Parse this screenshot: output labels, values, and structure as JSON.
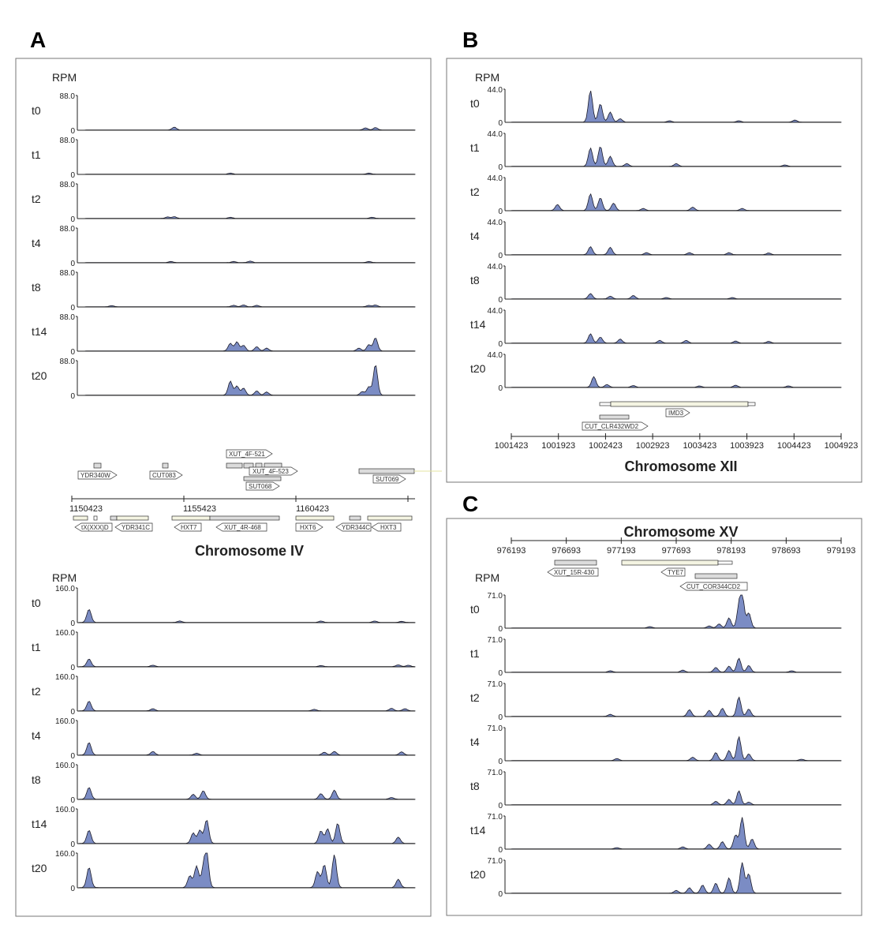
{
  "panels": {
    "A": {
      "letter": "A",
      "rpm_label": "RPM",
      "top": {
        "ymax_label": "88.0",
        "zero_label": "0",
        "tracks": [
          {
            "label": "t0",
            "peaks": [
              [
                0.27,
                0.08
              ],
              [
                0.85,
                0.06
              ],
              [
                0.88,
                0.07
              ]
            ]
          },
          {
            "label": "t1",
            "peaks": [
              [
                0.44,
                0.03
              ],
              [
                0.86,
                0.03
              ]
            ]
          },
          {
            "label": "t2",
            "peaks": [
              [
                0.25,
                0.04
              ],
              [
                0.27,
                0.05
              ],
              [
                0.44,
                0.03
              ],
              [
                0.87,
                0.03
              ]
            ]
          },
          {
            "label": "t4",
            "peaks": [
              [
                0.26,
                0.03
              ],
              [
                0.45,
                0.03
              ],
              [
                0.5,
                0.04
              ],
              [
                0.86,
                0.03
              ]
            ]
          },
          {
            "label": "t8",
            "peaks": [
              [
                0.08,
                0.03
              ],
              [
                0.45,
                0.04
              ],
              [
                0.48,
                0.05
              ],
              [
                0.52,
                0.04
              ],
              [
                0.86,
                0.04
              ],
              [
                0.88,
                0.05
              ]
            ]
          },
          {
            "label": "t14",
            "peaks": [
              [
                0.44,
                0.22
              ],
              [
                0.46,
                0.26
              ],
              [
                0.48,
                0.16
              ],
              [
                0.52,
                0.12
              ],
              [
                0.55,
                0.08
              ],
              [
                0.83,
                0.08
              ],
              [
                0.86,
                0.18
              ],
              [
                0.88,
                0.38
              ]
            ]
          },
          {
            "label": "t20",
            "peaks": [
              [
                0.44,
                0.4
              ],
              [
                0.46,
                0.26
              ],
              [
                0.48,
                0.2
              ],
              [
                0.52,
                0.12
              ],
              [
                0.55,
                0.09
              ],
              [
                0.84,
                0.1
              ],
              [
                0.86,
                0.24
              ],
              [
                0.88,
                0.88
              ]
            ]
          }
        ]
      },
      "annotation": {
        "genes_top": [
          "YDR340W",
          "CUT083",
          "XUT_4F-521",
          "XUT_4F-523",
          "SUT068",
          "SUT069"
        ],
        "genes_bottom": [
          "tX(XXX)D",
          "YDR341C",
          "HXT7",
          "XUT_4R-468",
          "HXT6",
          "YDR344C",
          "HXT3"
        ],
        "ticks": [
          "1150423",
          "1155423",
          "1160423"
        ],
        "title": "Chromosome IV"
      },
      "bottom": {
        "rpm_label": "RPM",
        "ymax_label": "160.0",
        "zero_label": "0",
        "tracks": [
          {
            "label": "t0",
            "peaks": [
              [
                0.03,
                0.38
              ],
              [
                0.3,
                0.04
              ],
              [
                0.72,
                0.04
              ],
              [
                0.88,
                0.04
              ],
              [
                0.96,
                0.03
              ]
            ]
          },
          {
            "label": "t1",
            "peaks": [
              [
                0.03,
                0.22
              ],
              [
                0.22,
                0.04
              ],
              [
                0.72,
                0.03
              ],
              [
                0.95,
                0.05
              ],
              [
                0.98,
                0.04
              ]
            ]
          },
          {
            "label": "t2",
            "peaks": [
              [
                0.03,
                0.28
              ],
              [
                0.22,
                0.06
              ],
              [
                0.7,
                0.04
              ],
              [
                0.93,
                0.07
              ],
              [
                0.97,
                0.06
              ]
            ]
          },
          {
            "label": "t4",
            "peaks": [
              [
                0.03,
                0.36
              ],
              [
                0.22,
                0.1
              ],
              [
                0.35,
                0.05
              ],
              [
                0.73,
                0.08
              ],
              [
                0.76,
                0.1
              ],
              [
                0.96,
                0.09
              ]
            ]
          },
          {
            "label": "t8",
            "peaks": [
              [
                0.03,
                0.34
              ],
              [
                0.34,
                0.14
              ],
              [
                0.37,
                0.24
              ],
              [
                0.72,
                0.16
              ],
              [
                0.76,
                0.26
              ],
              [
                0.93,
                0.05
              ]
            ]
          },
          {
            "label": "t14",
            "peaks": [
              [
                0.03,
                0.38
              ],
              [
                0.34,
                0.3
              ],
              [
                0.36,
                0.38
              ],
              [
                0.38,
                0.68
              ],
              [
                0.72,
                0.36
              ],
              [
                0.74,
                0.42
              ],
              [
                0.77,
                0.58
              ],
              [
                0.95,
                0.18
              ]
            ]
          },
          {
            "label": "t20",
            "peaks": [
              [
                0.03,
                0.58
              ],
              [
                0.33,
                0.34
              ],
              [
                0.35,
                0.62
              ],
              [
                0.37,
                0.44
              ],
              [
                0.38,
                0.95
              ],
              [
                0.71,
                0.46
              ],
              [
                0.73,
                0.66
              ],
              [
                0.76,
                0.95
              ],
              [
                0.95,
                0.24
              ]
            ]
          }
        ]
      }
    },
    "B": {
      "letter": "B",
      "rpm_label": "RPM",
      "ymax_label": "44.0",
      "zero_label": "0",
      "tracks": [
        {
          "label": "t0",
          "peaks": [
            [
              0.24,
              0.95
            ],
            [
              0.27,
              0.55
            ],
            [
              0.3,
              0.3
            ],
            [
              0.33,
              0.1
            ],
            [
              0.48,
              0.04
            ],
            [
              0.69,
              0.04
            ],
            [
              0.86,
              0.06
            ]
          ]
        },
        {
          "label": "t1",
          "peaks": [
            [
              0.24,
              0.55
            ],
            [
              0.27,
              0.6
            ],
            [
              0.3,
              0.3
            ],
            [
              0.35,
              0.08
            ],
            [
              0.5,
              0.08
            ],
            [
              0.83,
              0.04
            ]
          ]
        },
        {
          "label": "t2",
          "peaks": [
            [
              0.14,
              0.18
            ],
            [
              0.24,
              0.5
            ],
            [
              0.27,
              0.38
            ],
            [
              0.31,
              0.22
            ],
            [
              0.4,
              0.06
            ],
            [
              0.55,
              0.1
            ],
            [
              0.7,
              0.06
            ]
          ]
        },
        {
          "label": "t4",
          "peaks": [
            [
              0.24,
              0.24
            ],
            [
              0.3,
              0.22
            ],
            [
              0.41,
              0.06
            ],
            [
              0.54,
              0.06
            ],
            [
              0.66,
              0.06
            ],
            [
              0.78,
              0.05
            ]
          ]
        },
        {
          "label": "t8",
          "peaks": [
            [
              0.24,
              0.16
            ],
            [
              0.3,
              0.08
            ],
            [
              0.37,
              0.1
            ],
            [
              0.47,
              0.04
            ],
            [
              0.67,
              0.04
            ]
          ]
        },
        {
          "label": "t14",
          "peaks": [
            [
              0.24,
              0.28
            ],
            [
              0.27,
              0.18
            ],
            [
              0.33,
              0.12
            ],
            [
              0.45,
              0.08
            ],
            [
              0.53,
              0.08
            ],
            [
              0.68,
              0.06
            ],
            [
              0.78,
              0.05
            ]
          ]
        },
        {
          "label": "t20",
          "peaks": [
            [
              0.25,
              0.32
            ],
            [
              0.29,
              0.08
            ],
            [
              0.37,
              0.05
            ],
            [
              0.57,
              0.04
            ],
            [
              0.68,
              0.06
            ],
            [
              0.84,
              0.04
            ]
          ]
        }
      ],
      "annotation": {
        "genes": [
          "IMD3",
          "CUT_CLR432WD2"
        ],
        "ticks": [
          "1001423",
          "1001923",
          "1002423",
          "1002923",
          "1003423",
          "1003923",
          "1004423",
          "1004923"
        ],
        "title": "Chromosome XII"
      }
    },
    "C": {
      "letter": "C",
      "title": "Chromosome XV",
      "ticks": [
        "976193",
        "976693",
        "977193",
        "977693",
        "978193",
        "978693",
        "979193"
      ],
      "genes": [
        "XUT_15R-430",
        "TYE7",
        "CUT_COR344CD2"
      ],
      "rpm_label": "RPM",
      "ymax_label": "71.0",
      "zero_label": "0",
      "tracks": [
        {
          "label": "t0",
          "peaks": [
            [
              0.42,
              0.04
            ],
            [
              0.6,
              0.06
            ],
            [
              0.63,
              0.12
            ],
            [
              0.66,
              0.3
            ],
            [
              0.69,
              0.55
            ],
            [
              0.7,
              0.95
            ],
            [
              0.72,
              0.45
            ]
          ]
        },
        {
          "label": "t1",
          "peaks": [
            [
              0.3,
              0.04
            ],
            [
              0.52,
              0.06
            ],
            [
              0.62,
              0.14
            ],
            [
              0.66,
              0.18
            ],
            [
              0.69,
              0.42
            ],
            [
              0.72,
              0.2
            ],
            [
              0.85,
              0.04
            ]
          ]
        },
        {
          "label": "t2",
          "peaks": [
            [
              0.3,
              0.06
            ],
            [
              0.54,
              0.2
            ],
            [
              0.6,
              0.18
            ],
            [
              0.64,
              0.24
            ],
            [
              0.69,
              0.58
            ],
            [
              0.72,
              0.22
            ]
          ]
        },
        {
          "label": "t4",
          "peaks": [
            [
              0.32,
              0.06
            ],
            [
              0.55,
              0.1
            ],
            [
              0.62,
              0.24
            ],
            [
              0.66,
              0.3
            ],
            [
              0.69,
              0.72
            ],
            [
              0.72,
              0.2
            ],
            [
              0.88,
              0.04
            ]
          ]
        },
        {
          "label": "t8",
          "peaks": [
            [
              0.62,
              0.1
            ],
            [
              0.66,
              0.16
            ],
            [
              0.69,
              0.42
            ],
            [
              0.72,
              0.08
            ]
          ]
        },
        {
          "label": "t14",
          "peaks": [
            [
              0.32,
              0.04
            ],
            [
              0.52,
              0.06
            ],
            [
              0.6,
              0.14
            ],
            [
              0.64,
              0.22
            ],
            [
              0.68,
              0.42
            ],
            [
              0.7,
              0.95
            ],
            [
              0.73,
              0.3
            ]
          ]
        },
        {
          "label": "t20",
          "peaks": [
            [
              0.5,
              0.08
            ],
            [
              0.54,
              0.16
            ],
            [
              0.58,
              0.24
            ],
            [
              0.62,
              0.3
            ],
            [
              0.66,
              0.46
            ],
            [
              0.7,
              0.92
            ],
            [
              0.72,
              0.58
            ]
          ]
        }
      ]
    }
  },
  "colors": {
    "fill": "#7b8cc4",
    "line": "#1c1c2a",
    "frame": "#777777",
    "gene_fill": "#dcdcdc",
    "gene_alt": "#f4f4e2"
  }
}
